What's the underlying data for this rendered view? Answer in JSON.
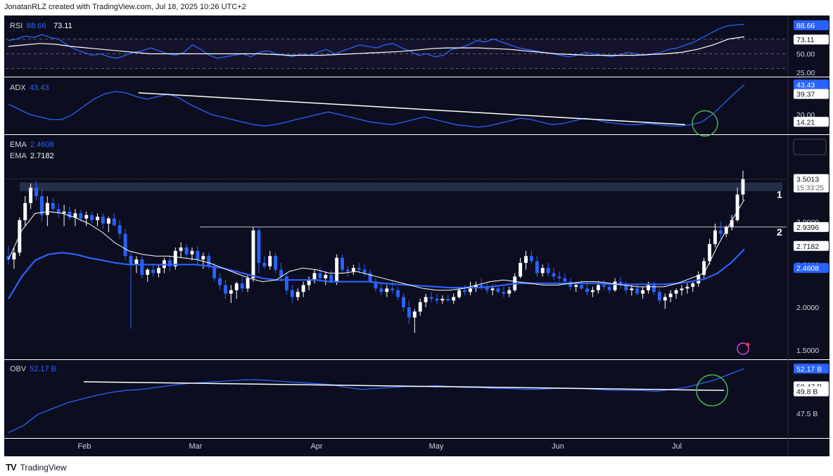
{
  "header": "JonatanRLZ created with TradingView.com, Jul 18, 2025 10:26 UTC+2",
  "footer": {
    "brand": "TradingView",
    "logo": "TV"
  },
  "colors": {
    "background": "#0c0e1f",
    "up": "#ffffff",
    "down": "#2962ff",
    "ema_fast": "#ffffff",
    "ema_slow": "#2962ff",
    "indicator": "#2962ff",
    "highlight_green": "#4caf50",
    "label_blue": "#2962ff"
  },
  "chart_data": {
    "type": "candlestick",
    "quote_currency": "USDT",
    "x_ticks": [
      "Feb",
      "Mar",
      "Apr",
      "May",
      "Jun",
      "Jul"
    ],
    "price": {
      "indicator_labels": [
        {
          "name": "EMA",
          "value": "2.4608"
        },
        {
          "name": "EMA",
          "value": "2.7182"
        }
      ],
      "y_ticks": [
        "3.0000",
        "2.5000",
        "2.0000",
        "1.5000"
      ],
      "ylim": [
        1.4,
        4.0
      ],
      "axis_labels": [
        {
          "text": "3.5013",
          "sub": "15:33:25",
          "value": 3.5013,
          "style": "white"
        },
        {
          "text": "2.9396",
          "value": 2.9396,
          "style": "white"
        },
        {
          "text": "2.7182",
          "value": 2.7182,
          "style": "white"
        },
        {
          "text": "2.4608",
          "value": 2.4608,
          "style": "blue"
        }
      ],
      "resistance_zone": [
        3.36,
        3.46
      ],
      "horizontal_line": 2.9396,
      "level_labels": [
        "1",
        "2"
      ],
      "candles": [
        [
          2.6,
          2.72,
          2.5,
          2.56
        ],
        [
          2.56,
          2.7,
          2.45,
          2.64
        ],
        [
          2.64,
          3.05,
          2.6,
          3.02
        ],
        [
          3.02,
          3.3,
          2.95,
          3.22
        ],
        [
          3.22,
          3.45,
          3.15,
          3.4
        ],
        [
          3.4,
          3.48,
          3.25,
          3.3
        ],
        [
          3.3,
          3.38,
          3.0,
          3.08
        ],
        [
          3.08,
          3.3,
          2.95,
          3.22
        ],
        [
          3.22,
          3.28,
          3.1,
          3.15
        ],
        [
          3.15,
          3.22,
          3.05,
          3.1
        ],
        [
          3.1,
          3.2,
          2.95,
          3.12
        ],
        [
          3.12,
          3.18,
          3.02,
          3.05
        ],
        [
          3.05,
          3.15,
          2.95,
          3.1
        ],
        [
          3.1,
          3.14,
          3.0,
          3.04
        ],
        [
          3.04,
          3.12,
          2.95,
          3.08
        ],
        [
          3.08,
          3.12,
          2.98,
          3.02
        ],
        [
          3.02,
          3.1,
          2.95,
          3.06
        ],
        [
          3.06,
          3.1,
          2.92,
          2.98
        ],
        [
          2.98,
          3.06,
          2.88,
          3.04
        ],
        [
          3.04,
          3.1,
          2.95,
          2.96
        ],
        [
          2.96,
          3.02,
          2.8,
          2.86
        ],
        [
          2.86,
          2.92,
          2.55,
          2.6
        ],
        [
          2.6,
          2.66,
          1.75,
          2.5
        ],
        [
          2.5,
          2.6,
          2.4,
          2.56
        ],
        [
          2.56,
          2.6,
          2.34,
          2.38
        ],
        [
          2.38,
          2.46,
          2.3,
          2.44
        ],
        [
          2.44,
          2.5,
          2.36,
          2.4
        ],
        [
          2.4,
          2.5,
          2.35,
          2.46
        ],
        [
          2.46,
          2.58,
          2.4,
          2.55
        ],
        [
          2.55,
          2.6,
          2.42,
          2.48
        ],
        [
          2.48,
          2.7,
          2.44,
          2.66
        ],
        [
          2.66,
          2.76,
          2.58,
          2.7
        ],
        [
          2.7,
          2.74,
          2.58,
          2.62
        ],
        [
          2.62,
          2.7,
          2.55,
          2.66
        ],
        [
          2.66,
          2.72,
          2.5,
          2.56
        ],
        [
          2.56,
          2.64,
          2.45,
          2.6
        ],
        [
          2.6,
          2.64,
          2.45,
          2.48
        ],
        [
          2.48,
          2.52,
          2.3,
          2.34
        ],
        [
          2.34,
          2.4,
          2.2,
          2.26
        ],
        [
          2.26,
          2.32,
          2.1,
          2.16
        ],
        [
          2.16,
          2.26,
          2.05,
          2.2
        ],
        [
          2.2,
          2.3,
          2.1,
          2.28
        ],
        [
          2.28,
          2.36,
          2.18,
          2.22
        ],
        [
          2.22,
          2.38,
          2.18,
          2.34
        ],
        [
          2.34,
          2.94,
          2.3,
          2.9
        ],
        [
          2.9,
          2.94,
          2.4,
          2.52
        ],
        [
          2.52,
          2.6,
          2.45,
          2.48
        ],
        [
          2.48,
          2.66,
          2.44,
          2.6
        ],
        [
          2.6,
          2.64,
          2.4,
          2.44
        ],
        [
          2.44,
          2.52,
          2.3,
          2.36
        ],
        [
          2.36,
          2.4,
          2.15,
          2.2
        ],
        [
          2.2,
          2.26,
          2.05,
          2.12
        ],
        [
          2.12,
          2.22,
          2.08,
          2.18
        ],
        [
          2.18,
          2.3,
          2.12,
          2.26
        ],
        [
          2.26,
          2.36,
          2.2,
          2.32
        ],
        [
          2.32,
          2.44,
          2.28,
          2.4
        ],
        [
          2.4,
          2.46,
          2.3,
          2.34
        ],
        [
          2.34,
          2.42,
          2.26,
          2.38
        ],
        [
          2.38,
          2.44,
          2.28,
          2.3
        ],
        [
          2.3,
          2.62,
          2.26,
          2.58
        ],
        [
          2.58,
          2.62,
          2.4,
          2.44
        ],
        [
          2.44,
          2.48,
          2.36,
          2.42
        ],
        [
          2.42,
          2.5,
          2.38,
          2.46
        ],
        [
          2.46,
          2.52,
          2.4,
          2.44
        ],
        [
          2.44,
          2.5,
          2.36,
          2.4
        ],
        [
          2.4,
          2.44,
          2.28,
          2.3
        ],
        [
          2.3,
          2.34,
          2.18,
          2.22
        ],
        [
          2.22,
          2.28,
          2.14,
          2.18
        ],
        [
          2.18,
          2.26,
          2.12,
          2.22
        ],
        [
          2.22,
          2.3,
          2.16,
          2.2
        ],
        [
          2.2,
          2.24,
          2.08,
          2.12
        ],
        [
          2.12,
          2.16,
          1.95,
          2.0
        ],
        [
          2.0,
          2.08,
          1.8,
          1.88
        ],
        [
          1.88,
          1.98,
          1.7,
          1.95
        ],
        [
          1.95,
          2.1,
          1.9,
          2.06
        ],
        [
          2.06,
          2.16,
          2.0,
          2.12
        ],
        [
          2.12,
          2.18,
          2.06,
          2.1
        ],
        [
          2.1,
          2.16,
          2.04,
          2.08
        ],
        [
          2.08,
          2.14,
          2.04,
          2.1
        ],
        [
          2.1,
          2.14,
          2.06,
          2.08
        ],
        [
          2.08,
          2.16,
          2.04,
          2.12
        ],
        [
          2.12,
          2.24,
          2.1,
          2.2
        ],
        [
          2.2,
          2.26,
          2.14,
          2.18
        ],
        [
          2.18,
          2.3,
          2.14,
          2.24
        ],
        [
          2.24,
          2.3,
          2.18,
          2.26
        ],
        [
          2.26,
          2.34,
          2.2,
          2.24
        ],
        [
          2.24,
          2.28,
          2.16,
          2.2
        ],
        [
          2.2,
          2.26,
          2.14,
          2.22
        ],
        [
          2.22,
          2.26,
          2.16,
          2.18
        ],
        [
          2.18,
          2.24,
          2.12,
          2.16
        ],
        [
          2.16,
          2.24,
          2.12,
          2.2
        ],
        [
          2.2,
          2.4,
          2.18,
          2.36
        ],
        [
          2.36,
          2.58,
          2.34,
          2.52
        ],
        [
          2.52,
          2.66,
          2.44,
          2.6
        ],
        [
          2.6,
          2.66,
          2.5,
          2.54
        ],
        [
          2.54,
          2.6,
          2.36,
          2.4
        ],
        [
          2.4,
          2.5,
          2.36,
          2.46
        ],
        [
          2.46,
          2.52,
          2.36,
          2.4
        ],
        [
          2.4,
          2.46,
          2.32,
          2.36
        ],
        [
          2.36,
          2.42,
          2.3,
          2.34
        ],
        [
          2.34,
          2.4,
          2.26,
          2.3
        ],
        [
          2.3,
          2.34,
          2.2,
          2.24
        ],
        [
          2.24,
          2.3,
          2.18,
          2.26
        ],
        [
          2.26,
          2.32,
          2.2,
          2.22
        ],
        [
          2.22,
          2.28,
          2.14,
          2.18
        ],
        [
          2.18,
          2.24,
          2.12,
          2.2
        ],
        [
          2.2,
          2.3,
          2.16,
          2.26
        ],
        [
          2.26,
          2.32,
          2.2,
          2.24
        ],
        [
          2.24,
          2.28,
          2.16,
          2.2
        ],
        [
          2.2,
          2.34,
          2.18,
          2.3
        ],
        [
          2.3,
          2.36,
          2.22,
          2.26
        ],
        [
          2.26,
          2.3,
          2.16,
          2.2
        ],
        [
          2.2,
          2.26,
          2.14,
          2.22
        ],
        [
          2.22,
          2.28,
          2.14,
          2.16
        ],
        [
          2.16,
          2.24,
          2.1,
          2.2
        ],
        [
          2.2,
          2.3,
          2.16,
          2.26
        ],
        [
          2.26,
          2.3,
          2.14,
          2.18
        ],
        [
          2.18,
          2.22,
          2.04,
          2.08
        ],
        [
          2.08,
          2.16,
          1.98,
          2.12
        ],
        [
          2.12,
          2.2,
          2.06,
          2.16
        ],
        [
          2.16,
          2.22,
          2.1,
          2.2
        ],
        [
          2.2,
          2.26,
          2.14,
          2.22
        ],
        [
          2.22,
          2.28,
          2.16,
          2.24
        ],
        [
          2.24,
          2.3,
          2.18,
          2.28
        ],
        [
          2.28,
          2.42,
          2.24,
          2.38
        ],
        [
          2.38,
          2.58,
          2.34,
          2.54
        ],
        [
          2.54,
          2.8,
          2.5,
          2.74
        ],
        [
          2.74,
          2.98,
          2.7,
          2.9
        ],
        [
          2.9,
          3.0,
          2.8,
          2.86
        ],
        [
          2.86,
          2.96,
          2.82,
          2.94
        ],
        [
          2.94,
          3.08,
          2.9,
          3.02
        ],
        [
          3.02,
          3.4,
          3.0,
          3.32
        ],
        [
          3.32,
          3.6,
          3.25,
          3.5
        ]
      ],
      "ema_white": [
        2.56,
        2.9,
        3.1,
        3.12,
        3.1,
        3.05,
        2.98,
        2.88,
        2.75,
        2.66,
        2.62,
        2.6,
        2.6,
        2.58,
        2.56,
        2.52,
        2.46,
        2.4,
        2.34,
        2.3,
        2.32,
        2.42,
        2.46,
        2.44,
        2.4,
        2.4,
        2.42,
        2.38,
        2.34,
        2.3,
        2.26,
        2.22,
        2.2,
        2.2,
        2.22,
        2.26,
        2.3,
        2.32,
        2.3,
        2.28,
        2.26,
        2.26,
        2.28,
        2.3,
        2.3,
        2.28,
        2.26,
        2.24,
        2.24,
        2.24,
        2.28,
        2.34,
        2.4,
        2.72,
        3.0,
        3.26
      ],
      "ema_blue": [
        2.1,
        2.36,
        2.55,
        2.62,
        2.64,
        2.62,
        2.58,
        2.55,
        2.52,
        2.5,
        2.5,
        2.5,
        2.5,
        2.5,
        2.5,
        2.48,
        2.46,
        2.42,
        2.38,
        2.34,
        2.32,
        2.32,
        2.32,
        2.32,
        2.3,
        2.3,
        2.3,
        2.3,
        2.28,
        2.27,
        2.26,
        2.25,
        2.24,
        2.23,
        2.23,
        2.23,
        2.24,
        2.26,
        2.28,
        2.28,
        2.28,
        2.28,
        2.28,
        2.28,
        2.28,
        2.27,
        2.27,
        2.27,
        2.27,
        2.27,
        2.28,
        2.3,
        2.33,
        2.4,
        2.52,
        2.68
      ]
    },
    "rsi": {
      "label": "RSI",
      "values_text": [
        "88.66",
        "73.11"
      ],
      "y_ticks": [
        "50.00",
        "25.00"
      ],
      "axis_labels": [
        {
          "text": "88.66",
          "value": 88.66,
          "style": "blue"
        },
        {
          "text": "73.11",
          "value": 73.11,
          "style": "white"
        }
      ],
      "ylim": [
        20,
        100
      ],
      "rsi_line": [
        68,
        70,
        74,
        72,
        76,
        72,
        70,
        62,
        56,
        52,
        48,
        50,
        46,
        44,
        48,
        52,
        54,
        58,
        54,
        50,
        48,
        52,
        62,
        56,
        48,
        44,
        46,
        48,
        50,
        46,
        52,
        54,
        50,
        48,
        46,
        50,
        48,
        52,
        56,
        50,
        54,
        58,
        62,
        60,
        58,
        62,
        64,
        58,
        54,
        48,
        50,
        46,
        48,
        56,
        58,
        62,
        68,
        66,
        70,
        66,
        62,
        58,
        56,
        54,
        52,
        50,
        48,
        46,
        48,
        52,
        50,
        48,
        46,
        48,
        52,
        50,
        48,
        50,
        52,
        56,
        58,
        62,
        66,
        72,
        78,
        84,
        88,
        89,
        90
      ],
      "signal_line": [
        60,
        62,
        64,
        63,
        60,
        58,
        56,
        54,
        52,
        50,
        50,
        50,
        50,
        50,
        50,
        50,
        50,
        49,
        48,
        48,
        48,
        49,
        50,
        51,
        52,
        53,
        55,
        57,
        58,
        58,
        58,
        57,
        56,
        54,
        52,
        50,
        49,
        48,
        48,
        48,
        48,
        49,
        50,
        52,
        56,
        62,
        70,
        73
      ]
    },
    "adx": {
      "label": "ADX",
      "value_text": "43.43",
      "y_ticks": [
        "20.00"
      ],
      "axis_labels": [
        {
          "text": "43.43",
          "value": 43.43,
          "style": "blue"
        },
        {
          "text": "39.37",
          "value": 39.37,
          "style": "white"
        },
        {
          "text": "14.21",
          "value": 14.21,
          "style": "white"
        }
      ],
      "ylim": [
        5,
        48
      ],
      "adx_line": [
        28,
        24,
        20,
        18,
        16,
        16,
        20,
        26,
        32,
        36,
        38,
        37,
        34,
        32,
        34,
        36,
        33,
        28,
        24,
        20,
        18,
        16,
        14,
        12,
        11,
        12,
        14,
        16,
        18,
        20,
        22,
        20,
        18,
        16,
        14,
        13,
        12,
        14,
        16,
        18,
        16,
        14,
        12,
        11,
        10,
        11,
        13,
        15,
        17,
        16,
        14,
        12,
        13,
        15,
        17,
        16,
        14,
        13,
        12,
        12,
        13,
        12,
        11,
        11,
        12,
        14,
        20,
        28,
        36,
        43.43
      ],
      "trendline": [
        [
          0.17,
          37
        ],
        [
          0.87,
          12
        ]
      ]
    },
    "obv": {
      "label": "OBV",
      "value_text": "52.17 B",
      "y_ticks": [
        "47.5 B"
      ],
      "axis_labels": [
        {
          "text": "52.17 B",
          "value": 52.17,
          "style": "blue"
        },
        {
          "text": "50.47 B",
          "value": 50.47,
          "style": "white"
        },
        {
          "text": "49.8 B",
          "value": 49.8,
          "style": "white"
        }
      ],
      "ylim": [
        45.0,
        53.0
      ],
      "obv_line": [
        45.5,
        46.2,
        47.4,
        48.0,
        48.6,
        49.0,
        49.4,
        49.7,
        49.9,
        50.0,
        50.2,
        50.4,
        50.6,
        50.7,
        50.8,
        50.9,
        51.0,
        51.0,
        50.9,
        50.8,
        50.7,
        50.6,
        50.5,
        50.2,
        50.0,
        50.1,
        50.2,
        50.3,
        50.3,
        50.4,
        50.3,
        50.2,
        50.2,
        50.1,
        50.1,
        50.0,
        50.0,
        50.1,
        50.1,
        50.1,
        50.0,
        49.9,
        49.9,
        49.9,
        49.8,
        50.0,
        50.2,
        50.6,
        51.0,
        51.6,
        52.17
      ],
      "trendline": [
        [
          0.1,
          50.8
        ],
        [
          0.92,
          49.9
        ]
      ]
    }
  }
}
